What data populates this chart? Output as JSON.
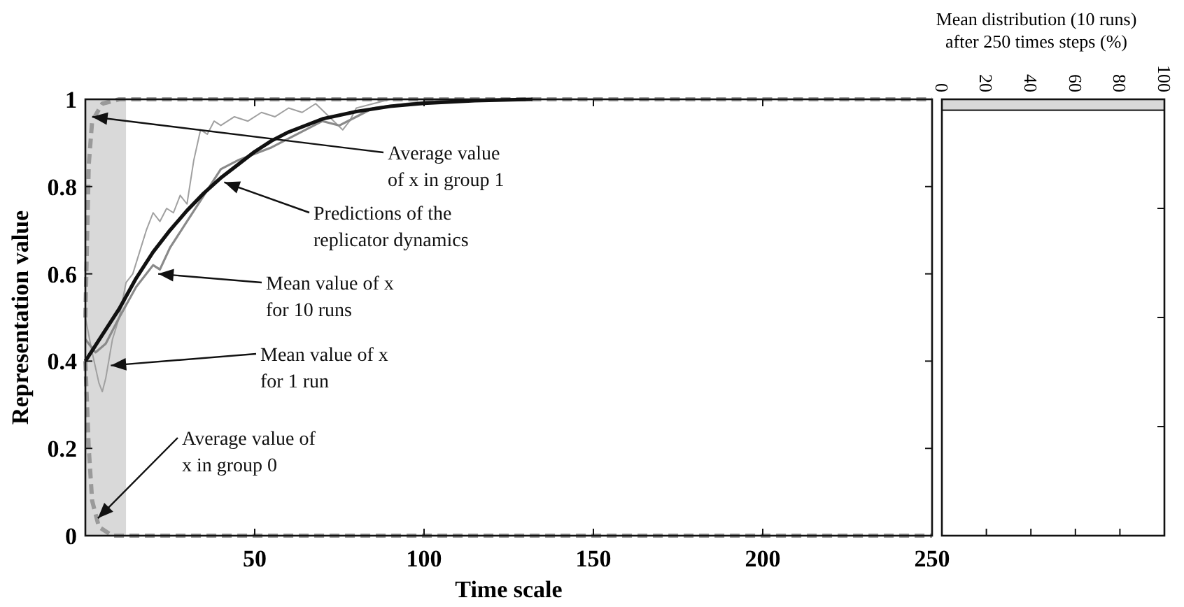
{
  "chart_data": [
    {
      "type": "line",
      "xlabel": "Time scale",
      "ylabel": "Representation value",
      "xlim": [
        0,
        250
      ],
      "xticks": [
        50,
        100,
        150,
        200,
        250
      ],
      "ylim": [
        0,
        1
      ],
      "yticks": [
        0,
        0.2,
        0.4,
        0.6,
        0.8,
        1
      ],
      "grid": false,
      "bands": [
        {
          "axis": "x",
          "from": 0,
          "to": 12,
          "color": "#d9d9d9"
        }
      ],
      "series": [
        {
          "color": "#9a9a9a",
          "line_style": "dashed",
          "x": [
            0,
            1,
            2,
            4,
            8,
            12,
            250
          ],
          "values": [
            0.4,
            0.2,
            0.08,
            0.02,
            0,
            0,
            0
          ]
        },
        {
          "color": "#9a9a9a",
          "line_style": "dashed",
          "x": [
            0,
            1,
            2,
            5,
            10,
            250
          ],
          "values": [
            0.5,
            0.85,
            0.95,
            0.99,
            1,
            1
          ]
        },
        {
          "color": "#a0a0a0",
          "line_style": "solid",
          "x": [
            0,
            2,
            4,
            5,
            6,
            8,
            10,
            12,
            14,
            16,
            18,
            20,
            22,
            24,
            26,
            28,
            30,
            32,
            34,
            36,
            38,
            40,
            44,
            48,
            52,
            56,
            60,
            64,
            68,
            72,
            76,
            78,
            80,
            85,
            90,
            100
          ],
          "values": [
            0.5,
            0.42,
            0.35,
            0.33,
            0.36,
            0.45,
            0.5,
            0.58,
            0.6,
            0.65,
            0.7,
            0.74,
            0.72,
            0.75,
            0.74,
            0.78,
            0.76,
            0.86,
            0.93,
            0.92,
            0.95,
            0.94,
            0.96,
            0.95,
            0.97,
            0.96,
            0.98,
            0.97,
            0.99,
            0.96,
            0.93,
            0.95,
            0.98,
            0.99,
            1,
            1
          ]
        },
        {
          "color": "#8a8a8a",
          "line_style": "solid",
          "x": [
            0,
            3,
            6,
            10,
            15,
            20,
            22,
            25,
            30,
            35,
            40,
            45,
            50,
            55,
            60,
            65,
            70,
            75,
            80,
            85,
            95,
            110
          ],
          "values": [
            0.45,
            0.42,
            0.44,
            0.5,
            0.57,
            0.62,
            0.61,
            0.66,
            0.72,
            0.78,
            0.84,
            0.86,
            0.875,
            0.89,
            0.91,
            0.93,
            0.95,
            0.94,
            0.96,
            0.98,
            0.99,
            1
          ]
        },
        {
          "color": "#111111",
          "line_style": "solid",
          "x": [
            0,
            5,
            10,
            15,
            20,
            25,
            30,
            35,
            40,
            45,
            50,
            55,
            60,
            70,
            80,
            90,
            100,
            115,
            132
          ],
          "values": [
            0.4,
            0.46,
            0.52,
            0.59,
            0.65,
            0.7,
            0.745,
            0.785,
            0.82,
            0.85,
            0.88,
            0.905,
            0.925,
            0.955,
            0.972,
            0.984,
            0.991,
            0.997,
            1
          ]
        }
      ],
      "annotations": [
        {
          "text": "Average value\nof x in group 1",
          "x": 2,
          "y": 0.96
        },
        {
          "text": "Predictions of the\nreplicator dynamics",
          "x": 41,
          "y": 0.81
        },
        {
          "text": "Mean value of x\nfor 10 runs",
          "x": 21.5,
          "y": 0.6
        },
        {
          "text": "Mean value of x\nfor 1 run",
          "x": 7.5,
          "y": 0.39
        },
        {
          "text": "Average value of\nx in group 0",
          "x": 3.7,
          "y": 0.04
        }
      ]
    },
    {
      "type": "histogram",
      "orientation": "horizontal",
      "title": "Mean distribution (10 runs)\nafter 250 times steps (%)",
      "bins": [
        0.975,
        1
      ],
      "values": [
        100
      ],
      "color": "#d9d9d9",
      "xlim": [
        0,
        100
      ],
      "xticks": [
        0,
        20,
        40,
        60,
        80,
        100
      ],
      "ylim": [
        0,
        1
      ],
      "yticks": [
        {
          "value": 0.25,
          "label": null
        },
        {
          "value": 0.5,
          "label": null
        },
        {
          "value": 0.75,
          "label": null
        }
      ],
      "tick_labels": "x"
    }
  ]
}
